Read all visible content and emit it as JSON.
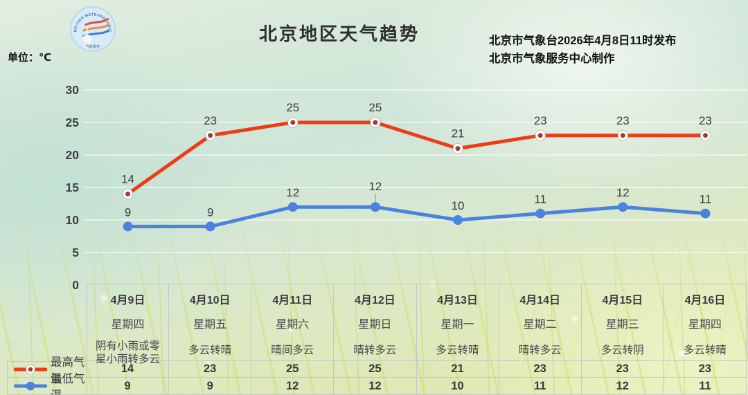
{
  "header": {
    "title": "北京地区天气趋势",
    "unit_label": "单位：℃",
    "release_line1": "北京市气象台2026年4月8日11时发布",
    "release_line2": "北京市气象服务中心制作",
    "logo_label": "BEIJING METEOROLOGICAL SERVICE"
  },
  "chart_data": {
    "type": "line",
    "title": "北京地区天气趋势",
    "unit": "℃",
    "categories": [
      "4月9日",
      "4月10日",
      "4月11日",
      "4月12日",
      "4月13日",
      "4月14日",
      "4月15日",
      "4月16日"
    ],
    "weekdays": [
      "星期四",
      "星期五",
      "星期六",
      "星期日",
      "星期一",
      "星期二",
      "星期三",
      "星期四"
    ],
    "weather": [
      "阴有小雨或零\n星小雨转多云",
      "多云转晴",
      "晴间多云",
      "晴转多云",
      "多云转晴",
      "晴转多云",
      "多云转阴",
      "多云转晴"
    ],
    "series": [
      {
        "name": "最高气温",
        "color": "#ef3b16",
        "marker_style": "open-circle",
        "marker_inner_color": "#a63c2f",
        "values": [
          14,
          23,
          25,
          25,
          21,
          23,
          23,
          23
        ]
      },
      {
        "name": "最低气温",
        "color": "#4a82e0",
        "marker_style": "filled-circle",
        "values": [
          9,
          9,
          12,
          12,
          10,
          11,
          12,
          11
        ]
      }
    ],
    "ylim": [
      0,
      30
    ],
    "yticks": [
      0,
      5,
      10,
      15,
      20,
      25,
      30
    ],
    "grid": "horizontal-white",
    "legend_position": "bottom-left-table",
    "label_color": "#3b3b3b",
    "tick_color": "#3f3f44",
    "gridline_color": "rgba(255,255,255,0.85)"
  }
}
